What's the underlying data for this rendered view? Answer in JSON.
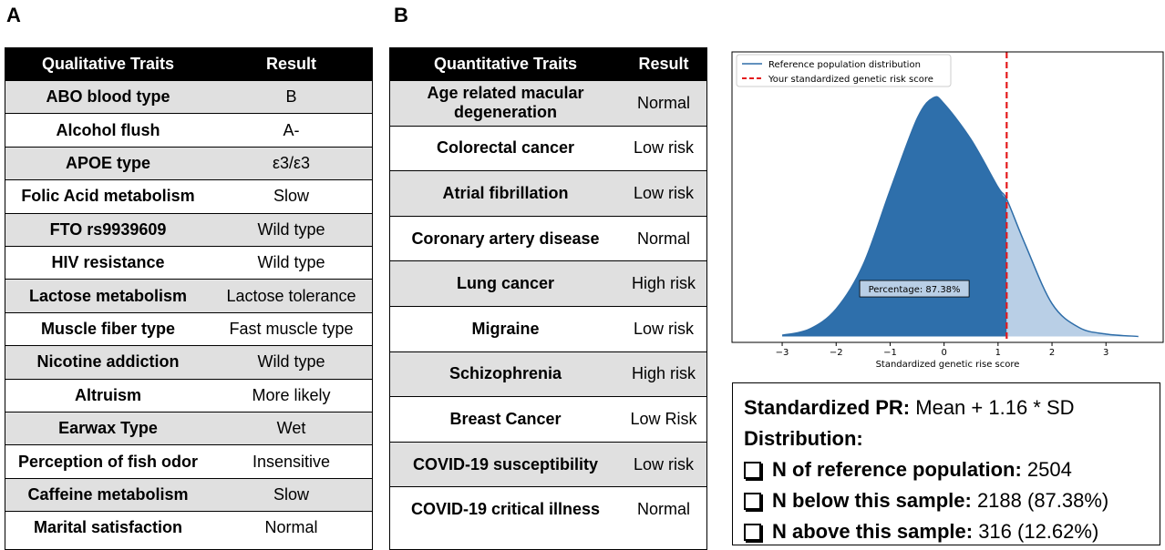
{
  "panel_labels": [
    "A",
    "B"
  ],
  "tableA": {
    "header": [
      "Qualitative Traits",
      "Result"
    ],
    "rows": [
      [
        "ABO blood type",
        "B"
      ],
      [
        "Alcohol flush",
        "A-"
      ],
      [
        "APOE type",
        "ε3/ε3"
      ],
      [
        "Folic Acid metabolism",
        "Slow"
      ],
      [
        "FTO rs9939609",
        "Wild type"
      ],
      [
        "HIV resistance",
        "Wild type"
      ],
      [
        "Lactose metabolism",
        "Lactose tolerance"
      ],
      [
        "Muscle fiber type",
        "Fast muscle type"
      ],
      [
        "Nicotine addiction",
        "Wild type"
      ],
      [
        "Altruism",
        "More likely"
      ],
      [
        "Earwax Type",
        "Wet"
      ],
      [
        "Perception of fish odor",
        "Insensitive"
      ],
      [
        "Caffeine metabolism",
        "Slow"
      ],
      [
        "Marital satisfaction",
        "Normal"
      ]
    ]
  },
  "tableB": {
    "header": [
      "Quantitative Traits",
      "Result"
    ],
    "rows": [
      [
        "Age related macular degeneration",
        "Normal"
      ],
      [
        "Colorectal cancer",
        "Low risk"
      ],
      [
        "Atrial fibrillation",
        "Low risk"
      ],
      [
        "Coronary artery disease",
        "Normal"
      ],
      [
        "Lung cancer",
        "High risk"
      ],
      [
        "Migraine",
        "Low risk"
      ],
      [
        "Schizophrenia",
        "High risk"
      ],
      [
        "Breast Cancer",
        "Low Risk"
      ],
      [
        "COVID-19 susceptibility",
        "Low risk"
      ],
      [
        "COVID-19 critical illness",
        "Normal"
      ]
    ]
  },
  "chart_data": {
    "type": "density",
    "xlabel": "Standardized genetic rise score",
    "x": [
      -3,
      -2.5,
      -2,
      -1.5,
      -1,
      -0.5,
      -0.2,
      0,
      0.5,
      1,
      1.16,
      1.5,
      2,
      2.5,
      3,
      3.6
    ],
    "series": [
      {
        "name": "Reference population distribution",
        "color": "#2e6da8",
        "values": [
          0.002,
          0.012,
          0.046,
          0.12,
          0.245,
          0.365,
          0.4,
          0.39,
          0.33,
          0.25,
          0.23,
          0.155,
          0.055,
          0.015,
          0.004,
          0
        ]
      }
    ],
    "marker": {
      "name": "Your standardized genetic risk score",
      "x": 1.16,
      "color": "#e41a1c"
    },
    "fill_below": "#2e6fab",
    "fill_above": "#b9cfe6",
    "annotation": "Percentage: 87.38%",
    "xlim": [
      -3.93,
      4.06
    ],
    "ylim": [
      -0.01,
      0.477
    ],
    "xticks": [
      {
        "value": -3,
        "label": "−3"
      },
      {
        "value": -2,
        "label": "−2"
      },
      {
        "value": -1,
        "label": "−1"
      },
      0,
      1,
      2,
      3
    ],
    "legend": "upper left"
  },
  "summary": {
    "lines": [
      {
        "label": "Standardized PR:",
        "text": " Mean + 1.16 * SD"
      },
      {
        "label": "Distribution:",
        "text": ""
      },
      {
        "label": "N of reference population:",
        "text": " 2504"
      },
      {
        "label": "N below this sample:",
        "text": " 2188 (87.38%)"
      },
      {
        "label": "N above this sample:",
        "text": " 316 (12.62%)"
      }
    ]
  }
}
